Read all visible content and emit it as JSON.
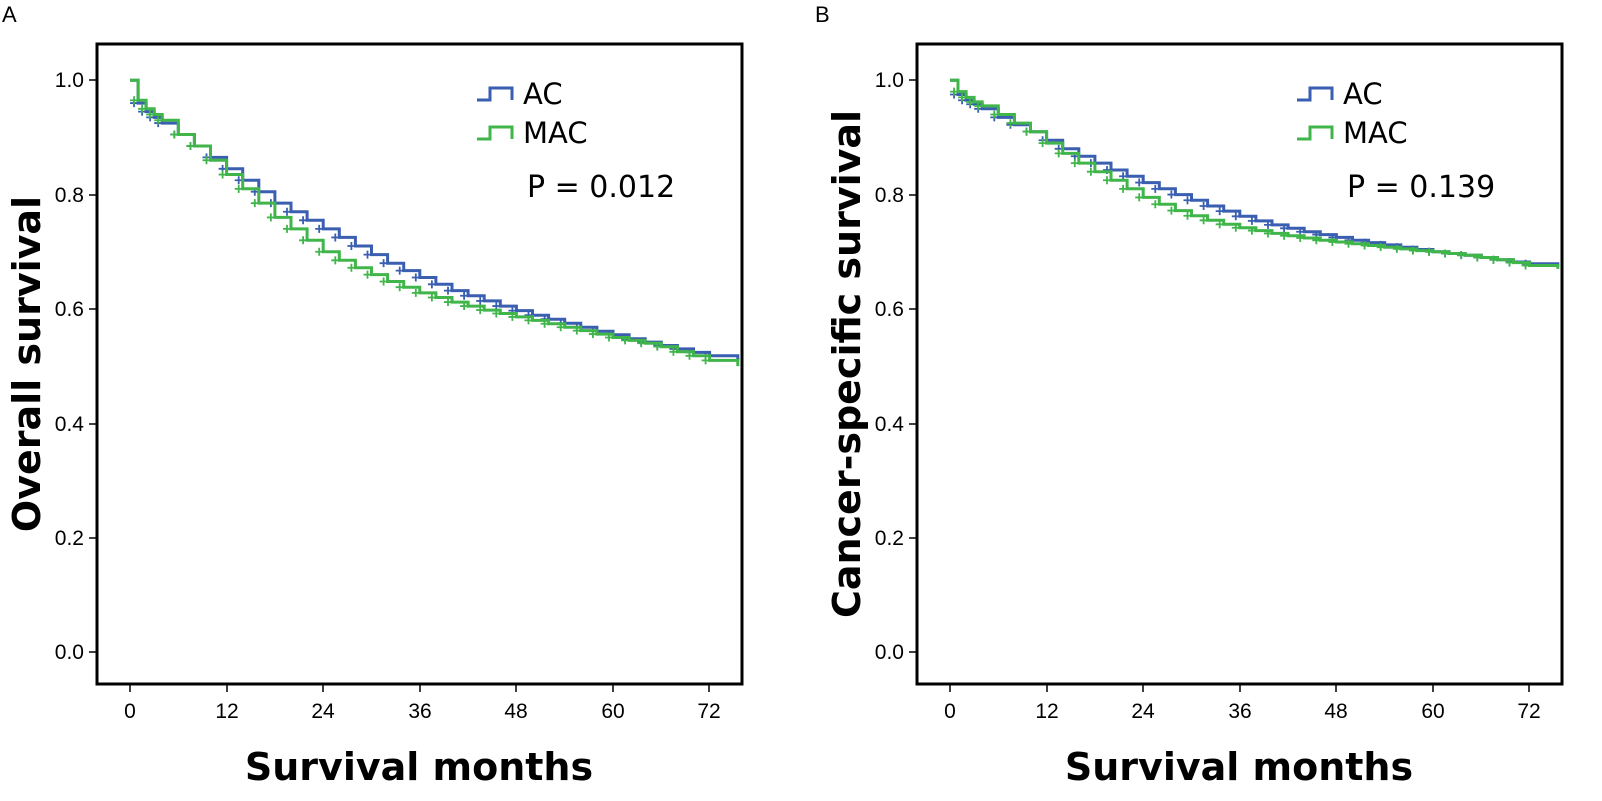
{
  "chart_data": [
    {
      "type": "line",
      "panel_label": "A",
      "xlabel": "Survival months",
      "ylabel": "Overall survival",
      "xlim": [
        -3,
        75.5
      ],
      "ylim": [
        -0.06,
        1.06
      ],
      "xticks": [
        "0",
        "12",
        "24",
        "36",
        "48",
        "60",
        "72"
      ],
      "yticks": [
        "0.0",
        "0.2",
        "0.4",
        "0.6",
        "0.8",
        "1.0"
      ],
      "legend_position": "top-right",
      "annotation": "P = 0.012",
      "series": [
        {
          "name": "AC",
          "color": "#3a5eb0",
          "x": [
            0,
            1,
            2,
            3,
            4,
            6,
            8,
            10,
            12,
            14,
            16,
            18,
            20,
            22,
            24,
            26,
            28,
            30,
            32,
            34,
            36,
            38,
            40,
            42,
            44,
            46,
            48,
            50,
            52,
            54,
            56,
            58,
            60,
            62,
            64,
            66,
            68,
            70,
            72,
            75.5
          ],
          "y": [
            1.0,
            0.96,
            0.945,
            0.935,
            0.925,
            0.905,
            0.885,
            0.865,
            0.845,
            0.825,
            0.805,
            0.785,
            0.77,
            0.755,
            0.74,
            0.725,
            0.71,
            0.695,
            0.68,
            0.667,
            0.655,
            0.643,
            0.632,
            0.623,
            0.614,
            0.605,
            0.597,
            0.589,
            0.582,
            0.575,
            0.568,
            0.561,
            0.555,
            0.548,
            0.542,
            0.536,
            0.53,
            0.524,
            0.518,
            0.51
          ]
        },
        {
          "name": "MAC",
          "color": "#3fb54a",
          "x": [
            0,
            1,
            2,
            3,
            4,
            6,
            8,
            10,
            12,
            14,
            16,
            18,
            20,
            22,
            24,
            26,
            28,
            30,
            32,
            34,
            36,
            38,
            40,
            42,
            44,
            46,
            48,
            50,
            52,
            54,
            56,
            58,
            60,
            62,
            64,
            66,
            68,
            70,
            72,
            75.5
          ],
          "y": [
            1.0,
            0.965,
            0.95,
            0.94,
            0.93,
            0.905,
            0.885,
            0.86,
            0.835,
            0.81,
            0.785,
            0.76,
            0.74,
            0.72,
            0.7,
            0.685,
            0.672,
            0.66,
            0.648,
            0.638,
            0.628,
            0.62,
            0.612,
            0.605,
            0.598,
            0.592,
            0.586,
            0.58,
            0.574,
            0.568,
            0.562,
            0.556,
            0.55,
            0.545,
            0.54,
            0.534,
            0.525,
            0.518,
            0.51,
            0.5
          ]
        }
      ]
    },
    {
      "type": "line",
      "panel_label": "B",
      "xlabel": "Survival months",
      "ylabel": "Cancer-specific survival",
      "xlim": [
        -3,
        75.5
      ],
      "ylim": [
        -0.06,
        1.06
      ],
      "xticks": [
        "0",
        "12",
        "24",
        "36",
        "48",
        "60",
        "72"
      ],
      "yticks": [
        "0.0",
        "0.2",
        "0.4",
        "0.6",
        "0.8",
        "1.0"
      ],
      "legend_position": "top-right",
      "annotation": "P = 0.139",
      "series": [
        {
          "name": "AC",
          "color": "#3a5eb0",
          "x": [
            0,
            1,
            2,
            3,
            4,
            6,
            8,
            10,
            12,
            14,
            16,
            18,
            20,
            22,
            24,
            26,
            28,
            30,
            32,
            34,
            36,
            38,
            40,
            42,
            44,
            46,
            48,
            50,
            52,
            54,
            56,
            58,
            60,
            62,
            64,
            66,
            68,
            70,
            72,
            75.5
          ],
          "y": [
            1.0,
            0.975,
            0.965,
            0.958,
            0.95,
            0.935,
            0.922,
            0.91,
            0.895,
            0.88,
            0.867,
            0.855,
            0.843,
            0.832,
            0.821,
            0.81,
            0.8,
            0.79,
            0.78,
            0.771,
            0.762,
            0.754,
            0.747,
            0.741,
            0.735,
            0.73,
            0.725,
            0.72,
            0.716,
            0.712,
            0.708,
            0.704,
            0.7,
            0.697,
            0.694,
            0.69,
            0.686,
            0.682,
            0.679,
            0.675
          ]
        },
        {
          "name": "MAC",
          "color": "#3fb54a",
          "x": [
            0,
            1,
            2,
            3,
            4,
            6,
            8,
            10,
            12,
            14,
            16,
            18,
            20,
            22,
            24,
            26,
            28,
            30,
            32,
            34,
            36,
            38,
            40,
            42,
            44,
            46,
            48,
            50,
            52,
            54,
            56,
            58,
            60,
            62,
            64,
            66,
            68,
            70,
            72,
            75.5
          ],
          "y": [
            1.0,
            0.98,
            0.97,
            0.962,
            0.955,
            0.94,
            0.925,
            0.91,
            0.89,
            0.872,
            0.855,
            0.84,
            0.825,
            0.81,
            0.795,
            0.783,
            0.772,
            0.763,
            0.755,
            0.748,
            0.742,
            0.737,
            0.732,
            0.728,
            0.724,
            0.72,
            0.717,
            0.714,
            0.711,
            0.708,
            0.705,
            0.702,
            0.7,
            0.697,
            0.694,
            0.69,
            0.686,
            0.681,
            0.676,
            0.67
          ]
        }
      ]
    }
  ]
}
